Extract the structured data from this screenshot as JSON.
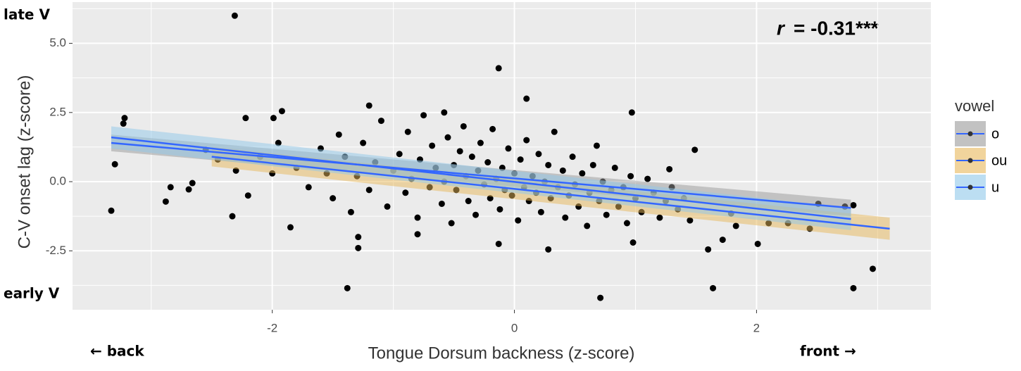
{
  "chart_data": {
    "type": "scatter",
    "xlabel": "Tongue Dorsum backness (z-score)",
    "ylabel": "C-V onset lag (z-score)",
    "annotations": {
      "top_left": "late V",
      "bottom_left": "early V",
      "left_arrow": "← back",
      "right_arrow": "front →",
      "r_symbol": "r",
      "r_value": "= -0.31***"
    },
    "xlim": [
      -3.65,
      3.44
    ],
    "ylim": [
      -4.63,
      6.49
    ],
    "xticks": [
      -2,
      0,
      2
    ],
    "yticks": [
      {
        "value": 5,
        "label": "5.0"
      },
      {
        "value": 2.5,
        "label": "2.5"
      },
      {
        "value": 0,
        "label": "0.0"
      },
      -2.5
    ],
    "x_minor_ticks": [
      -3,
      -1,
      1,
      3
    ],
    "y_minor_ticks": [
      -3.75,
      -1.25,
      1.25,
      3.75,
      6.25
    ],
    "grid": true,
    "point_color": "#000000",
    "x": [
      -2.31,
      -0.13,
      -3.33,
      -3.3,
      -3.22,
      -3.23,
      -2.88,
      -2.84,
      -2.69,
      -2.66,
      -2.33,
      -2.55,
      -2.22,
      -1.92,
      -1.99,
      -1.85,
      -1.38,
      -1.29,
      -1.29,
      -1.2,
      -0.8,
      -0.58,
      -0.13,
      0.1,
      0.28,
      0.71,
      0.97,
      0.98,
      1.49,
      1.64,
      1.6,
      1.72,
      2.01,
      2.8,
      2.96,
      2.8,
      2.51,
      2.26,
      2.1,
      2.73,
      2.44,
      1.83,
      1.79,
      1.28,
      -1.8,
      -1.7,
      -1.6,
      -1.55,
      -1.5,
      -1.45,
      -1.4,
      -1.35,
      -1.3,
      -1.25,
      -1.2,
      -1.15,
      -1.1,
      -1.05,
      -1.0,
      -0.95,
      -0.9,
      -0.88,
      -0.85,
      -0.8,
      -0.78,
      -0.75,
      -0.7,
      -0.68,
      -0.65,
      -0.6,
      -0.58,
      -0.55,
      -0.52,
      -0.5,
      -0.48,
      -0.45,
      -0.42,
      -0.4,
      -0.38,
      -0.35,
      -0.32,
      -0.3,
      -0.28,
      -0.25,
      -0.22,
      -0.2,
      -0.18,
      -0.15,
      -0.12,
      -0.1,
      -0.08,
      -0.05,
      -0.02,
      0.0,
      0.03,
      0.05,
      0.08,
      0.1,
      0.12,
      0.15,
      0.18,
      0.2,
      0.22,
      0.25,
      0.28,
      0.3,
      0.33,
      0.36,
      0.4,
      0.42,
      0.45,
      0.48,
      0.5,
      0.53,
      0.56,
      0.6,
      0.62,
      0.65,
      0.68,
      0.7,
      0.73,
      0.76,
      0.8,
      0.83,
      0.86,
      0.9,
      0.93,
      0.96,
      1.0,
      1.05,
      1.1,
      1.15,
      1.2,
      1.25,
      1.3,
      1.35,
      1.4,
      1.45,
      -2.1,
      -2.0,
      -1.95,
      -2.2,
      -2.3,
      -2.45
    ],
    "values": [
      6.0,
      4.1,
      -1.05,
      0.63,
      2.3,
      2.1,
      -0.72,
      -0.2,
      -0.28,
      -0.05,
      -1.25,
      1.15,
      2.3,
      2.55,
      2.3,
      -1.65,
      -3.85,
      -2.4,
      -2.0,
      2.75,
      -1.9,
      2.5,
      -2.25,
      3.0,
      -2.45,
      -4.2,
      2.5,
      -2.2,
      1.15,
      -3.85,
      -2.45,
      -2.1,
      -2.25,
      -3.85,
      -3.15,
      -0.85,
      -0.8,
      -1.5,
      -1.5,
      -0.9,
      -1.7,
      -1.6,
      -1.15,
      0.45,
      0.5,
      -0.2,
      1.2,
      0.3,
      -0.6,
      1.7,
      0.9,
      -1.1,
      0.2,
      1.4,
      -0.3,
      0.7,
      2.2,
      -0.9,
      0.4,
      1.0,
      -0.4,
      1.8,
      0.1,
      -1.3,
      0.8,
      2.4,
      -0.2,
      1.3,
      0.5,
      -0.8,
      0.0,
      1.6,
      -1.5,
      0.6,
      -0.3,
      1.1,
      2.0,
      0.2,
      -0.7,
      0.9,
      -1.2,
      0.4,
      1.4,
      -0.1,
      0.7,
      -0.6,
      1.9,
      0.1,
      -1.0,
      0.5,
      -0.3,
      1.2,
      -0.5,
      0.3,
      -1.4,
      0.8,
      -0.2,
      1.5,
      -0.7,
      0.2,
      -0.4,
      1.0,
      -1.1,
      0.0,
      0.6,
      -0.6,
      1.8,
      -0.2,
      0.4,
      -1.3,
      -0.5,
      0.9,
      -0.1,
      -0.9,
      0.3,
      -1.6,
      -0.4,
      0.6,
      1.3,
      -0.7,
      0.0,
      -1.2,
      -0.3,
      0.5,
      -0.9,
      -0.2,
      -1.5,
      0.2,
      -0.6,
      -1.1,
      0.1,
      -0.4,
      -1.3,
      -0.7,
      -0.2,
      -1.0,
      -0.6,
      -1.4,
      0.9,
      0.3,
      1.4,
      -0.5,
      0.4,
      0.8
    ],
    "legend_title": "vowel",
    "line_color": "#3366ff",
    "series": [
      {
        "name": "o",
        "color": "#999999",
        "x": [
          -3.33,
          2.78
        ],
        "values": [
          1.4,
          -0.95
        ],
        "lower": [
          1.1,
          -1.25
        ],
        "upper": [
          1.7,
          -0.65
        ]
      },
      {
        "name": "ou",
        "color": "#e8b85a",
        "x": [
          -2.5,
          3.1
        ],
        "values": [
          0.9,
          -1.7
        ],
        "lower": [
          0.55,
          -2.1
        ],
        "upper": [
          1.25,
          -1.3
        ]
      },
      {
        "name": "u",
        "color": "#8fc8ea",
        "x": [
          -3.33,
          2.78
        ],
        "values": [
          1.6,
          -1.35
        ],
        "lower": [
          1.2,
          -1.75
        ],
        "upper": [
          2.0,
          -0.95
        ]
      }
    ]
  }
}
